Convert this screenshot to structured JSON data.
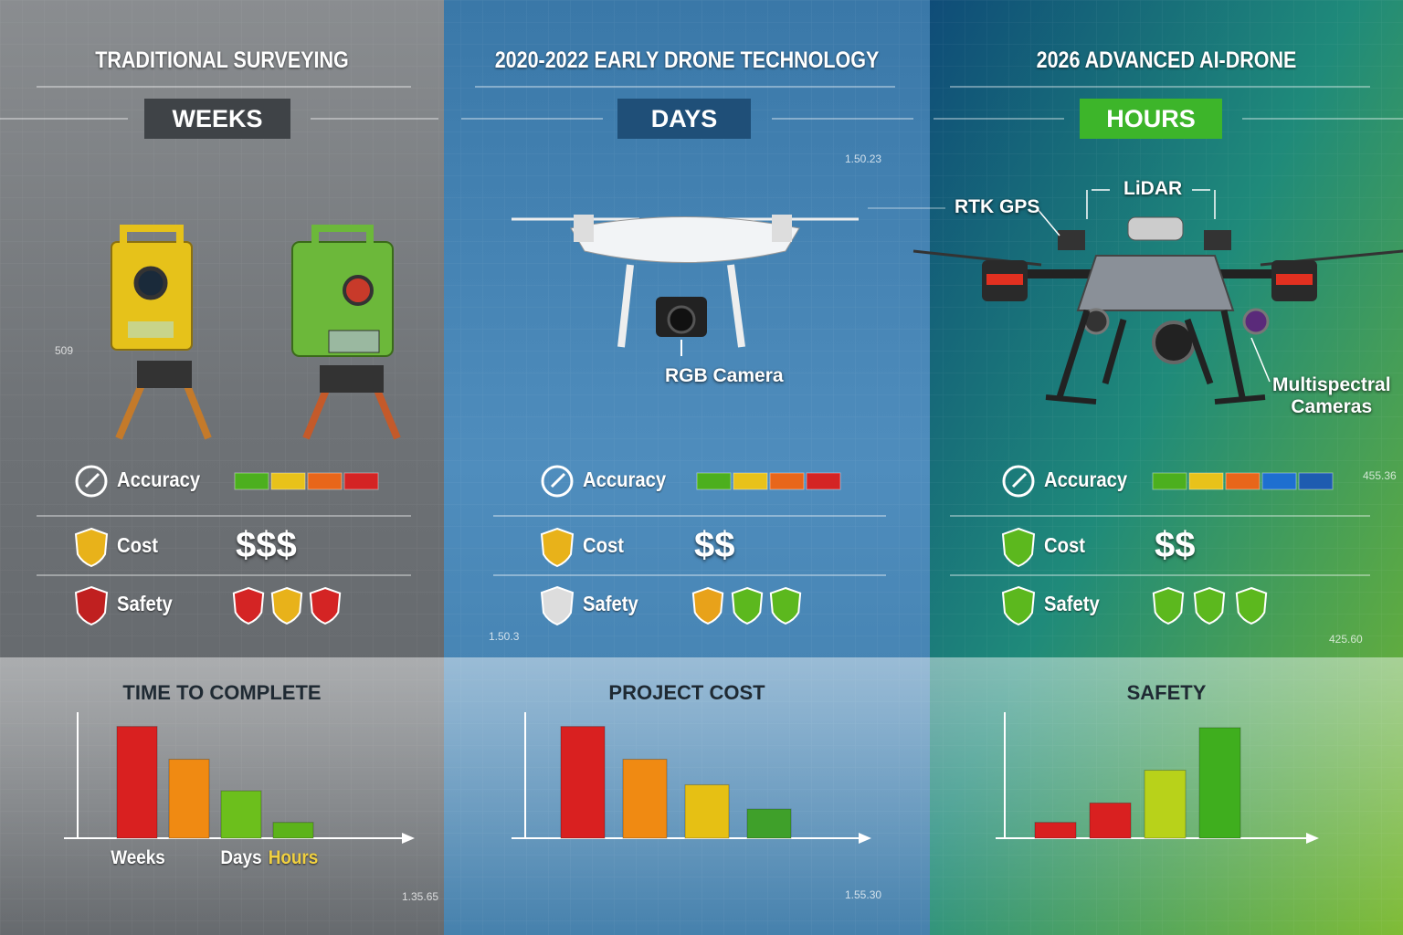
{
  "columns": [
    {
      "title": "TRADITIONAL SURVEYING",
      "badge": "WEEKS",
      "badge_color": "#3f4347",
      "metrics": {
        "accuracy": {
          "label": "Accuracy",
          "colors": [
            "#4caf1e",
            "#e8c21a",
            "#e8661a",
            "#d42424"
          ]
        },
        "cost": {
          "label": "Cost",
          "value": "$$$"
        },
        "safety": {
          "label": "Safety",
          "colors": [
            "#d42424",
            "#e8b21a",
            "#d42424"
          ]
        }
      },
      "callouts": [],
      "chart_data": {
        "type": "bar",
        "title": "TIME TO COMPLETE",
        "categories": [
          "Weeks",
          null,
          "Days",
          "Hours"
        ],
        "values": [
          92,
          65,
          39,
          13
        ],
        "colors": [
          "#d92020",
          "#f08a12",
          "#6cbf1c",
          "#5cb31a"
        ],
        "ylim": [
          0,
          100
        ]
      }
    },
    {
      "title": "2020-2022 EARLY DRONE TECHNOLOGY",
      "badge": "DAYS",
      "badge_color": "#1f4f78",
      "metrics": {
        "accuracy": {
          "label": "Accuracy",
          "colors": [
            "#4caf1e",
            "#e8c21a",
            "#e8661a",
            "#d42424"
          ]
        },
        "cost": {
          "label": "Cost",
          "value": "$$"
        },
        "safety": {
          "label": "Safety",
          "colors": [
            "#e8a21a",
            "#5cb81e",
            "#5cb81e"
          ]
        }
      },
      "callouts": [
        "RGB Camera"
      ],
      "chart_data": {
        "type": "bar",
        "title": "PROJECT COST",
        "categories": [
          null,
          null,
          null,
          null
        ],
        "values": [
          92,
          65,
          44,
          24
        ],
        "colors": [
          "#d92020",
          "#f08a12",
          "#e6c014",
          "#3fa02a"
        ],
        "ylim": [
          0,
          100
        ]
      }
    },
    {
      "title": "2026 ADVANCED AI-DRONE",
      "badge": "HOURS",
      "badge_color": "#3db52a",
      "metrics": {
        "accuracy": {
          "label": "Accuracy",
          "colors": [
            "#4caf1e",
            "#e8c21a",
            "#e8661a",
            "#1e6fd0",
            "#1e5cb0"
          ]
        },
        "cost": {
          "label": "Cost",
          "value": "$$"
        },
        "safety": {
          "label": "Safety",
          "colors": [
            "#5cb81e",
            "#5cb81e",
            "#5cb81e"
          ]
        }
      },
      "callouts": [
        "LiDAR",
        "RTK GPS",
        "Multispectral\nCameras"
      ],
      "chart_data": {
        "type": "bar",
        "title": "SAFETY",
        "categories": [
          null,
          null,
          null,
          null
        ],
        "values": [
          13,
          29,
          56,
          91
        ],
        "colors": [
          "#d92020",
          "#d92020",
          "#b8d21a",
          "#3fae1e"
        ],
        "ylim": [
          0,
          100
        ]
      }
    }
  ],
  "annotations": [
    "509",
    "1.50.23",
    "1.50.3",
    "455.36",
    "425.60",
    "1.35.65",
    "1.55.30"
  ]
}
